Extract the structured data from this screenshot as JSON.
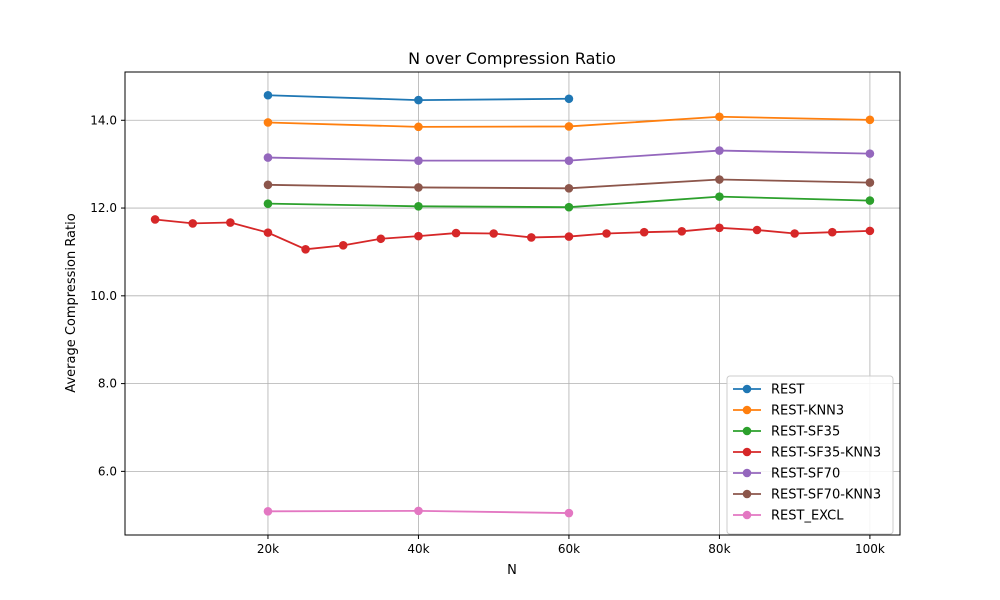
{
  "chart_data": {
    "type": "line",
    "title": "N over Compression Ratio",
    "xlabel": "N",
    "ylabel": "Average Compression Ratio",
    "xlim": [
      1000,
      104000
    ],
    "ylim": [
      4.55,
      15.1
    ],
    "x_ticks": [
      {
        "value": 20000,
        "label": "20k"
      },
      {
        "value": 40000,
        "label": "40k"
      },
      {
        "value": 60000,
        "label": "60k"
      },
      {
        "value": 80000,
        "label": "80k"
      },
      {
        "value": 100000,
        "label": "100k"
      }
    ],
    "y_ticks": [
      {
        "value": 6,
        "label": "6.0"
      },
      {
        "value": 8,
        "label": "8.0"
      },
      {
        "value": 10,
        "label": "10.0"
      },
      {
        "value": 12,
        "label": "12.0"
      },
      {
        "value": 14,
        "label": "14.0"
      }
    ],
    "grid": true,
    "legend_position": "bottom-right",
    "series": [
      {
        "name": "REST",
        "color": "#1f77b4",
        "x": [
          20000,
          40000,
          60000
        ],
        "y": [
          14.57,
          14.46,
          14.49
        ]
      },
      {
        "name": "REST-KNN3",
        "color": "#ff7f0e",
        "x": [
          20000,
          40000,
          60000,
          80000,
          100000
        ],
        "y": [
          13.95,
          13.85,
          13.86,
          14.08,
          14.01
        ]
      },
      {
        "name": "REST-SF35",
        "color": "#2ca02c",
        "x": [
          20000,
          40000,
          60000,
          80000,
          100000
        ],
        "y": [
          12.1,
          12.04,
          12.02,
          12.26,
          12.17
        ]
      },
      {
        "name": "REST-SF35-KNN3",
        "color": "#d62728",
        "x": [
          5000,
          10000,
          15000,
          20000,
          25000,
          30000,
          35000,
          40000,
          45000,
          50000,
          55000,
          60000,
          65000,
          70000,
          75000,
          80000,
          85000,
          90000,
          95000,
          100000
        ],
        "y": [
          11.74,
          11.65,
          11.67,
          11.44,
          11.06,
          11.15,
          11.3,
          11.36,
          11.43,
          11.42,
          11.33,
          11.35,
          11.42,
          11.45,
          11.47,
          11.55,
          11.5,
          11.42,
          11.45,
          11.48
        ]
      },
      {
        "name": "REST-SF70",
        "color": "#9467bd",
        "x": [
          20000,
          40000,
          60000,
          80000,
          100000
        ],
        "y": [
          13.15,
          13.08,
          13.08,
          13.31,
          13.24
        ]
      },
      {
        "name": "REST-SF70-KNN3",
        "color": "#8c564b",
        "x": [
          20000,
          40000,
          60000,
          80000,
          100000
        ],
        "y": [
          12.53,
          12.47,
          12.45,
          12.65,
          12.58
        ]
      },
      {
        "name": "REST_EXCL",
        "color": "#e377c2",
        "x": [
          20000,
          40000,
          60000
        ],
        "y": [
          5.09,
          5.1,
          5.05
        ]
      }
    ]
  }
}
